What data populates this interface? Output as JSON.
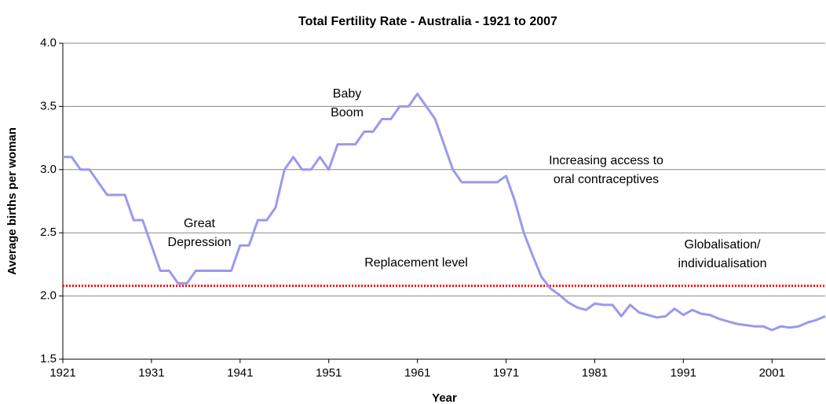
{
  "chart_data": {
    "type": "line",
    "title": "Total Fertility Rate - Australia - 1921 to 2007",
    "x_label": "Year",
    "y_label": "Average births per woman",
    "x": [
      1921,
      1922,
      1923,
      1924,
      1925,
      1926,
      1927,
      1928,
      1929,
      1930,
      1931,
      1932,
      1933,
      1934,
      1935,
      1936,
      1937,
      1938,
      1939,
      1940,
      1941,
      1942,
      1943,
      1944,
      1945,
      1946,
      1947,
      1948,
      1949,
      1950,
      1951,
      1952,
      1953,
      1954,
      1955,
      1956,
      1957,
      1958,
      1959,
      1960,
      1961,
      1962,
      1963,
      1964,
      1965,
      1966,
      1967,
      1968,
      1969,
      1970,
      1971,
      1972,
      1973,
      1974,
      1975,
      1976,
      1977,
      1978,
      1979,
      1980,
      1981,
      1982,
      1983,
      1984,
      1985,
      1986,
      1987,
      1988,
      1989,
      1990,
      1991,
      1992,
      1993,
      1994,
      1995,
      1996,
      1997,
      1998,
      1999,
      2000,
      2001,
      2002,
      2003,
      2004,
      2005,
      2006,
      2007
    ],
    "values": [
      3.1,
      3.1,
      3.0,
      3.0,
      2.9,
      2.8,
      2.8,
      2.8,
      2.6,
      2.6,
      2.4,
      2.2,
      2.2,
      2.1,
      2.1,
      2.2,
      2.2,
      2.2,
      2.2,
      2.2,
      2.4,
      2.4,
      2.6,
      2.6,
      2.7,
      3.0,
      3.1,
      3.0,
      3.0,
      3.1,
      3.0,
      3.2,
      3.2,
      3.2,
      3.3,
      3.3,
      3.4,
      3.4,
      3.5,
      3.5,
      3.6,
      3.5,
      3.4,
      3.2,
      3.0,
      2.9,
      2.9,
      2.9,
      2.9,
      2.9,
      2.95,
      2.75,
      2.5,
      2.32,
      2.15,
      2.06,
      2.01,
      1.95,
      1.91,
      1.89,
      1.94,
      1.93,
      1.93,
      1.84,
      1.93,
      1.87,
      1.85,
      1.83,
      1.84,
      1.9,
      1.85,
      1.89,
      1.86,
      1.85,
      1.82,
      1.8,
      1.78,
      1.77,
      1.76,
      1.76,
      1.73,
      1.76,
      1.75,
      1.76,
      1.79,
      1.81,
      1.84
    ],
    "color": "#9999ee",
    "xlim": [
      1921,
      2007
    ],
    "xticks": [
      1921,
      1931,
      1941,
      1951,
      1961,
      1971,
      1981,
      1991,
      2001
    ],
    "ylim": [
      1.5,
      4.0
    ],
    "yticks": [
      1.5,
      {
        "value": 2.0,
        "label": "2.0"
      },
      2.5,
      {
        "value": 3.0,
        "label": "3.0"
      },
      3.5,
      {
        "value": 4.0,
        "label": "4.0"
      }
    ],
    "grid": true,
    "reference_line": {
      "value": 2.08,
      "label": "Replacement level",
      "color": "#ff0000"
    },
    "annotations": [
      [
        "Great",
        "Depression"
      ],
      [
        "Baby",
        "Boom"
      ],
      [
        "Increasing access to",
        "oral contraceptives"
      ],
      [
        "Globalisation/",
        "individualisation"
      ]
    ]
  }
}
